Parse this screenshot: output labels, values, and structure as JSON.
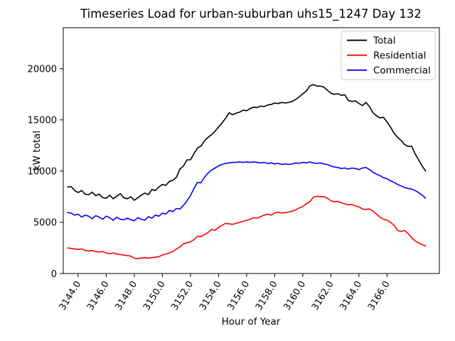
{
  "chart_data": {
    "type": "line",
    "title": "Timeseries Load for urban-suburban uhs15_1247  Day 132",
    "xlabel": "Hour of Year",
    "ylabel": "kW total",
    "xlim": [
      3142.94,
      3169.73
    ],
    "ylim": [
      0,
      24000
    ],
    "xticks": [
      3144,
      3146,
      3148,
      3150,
      3152,
      3154,
      3156,
      3158,
      3160,
      3162,
      3164,
      3166
    ],
    "xtick_labels": [
      "3144.0",
      "3146.0",
      "3148.0",
      "3150.0",
      "3152.0",
      "3154.0",
      "3156.0",
      "3158.0",
      "3160.0",
      "3162.0",
      "3164.0",
      "3166.0"
    ],
    "yticks": [
      0,
      5000,
      10000,
      15000,
      20000
    ],
    "ytick_labels": [
      "0",
      "5000",
      "10000",
      "15000",
      "20000"
    ],
    "grid": false,
    "legend_position": "upper right",
    "x": [
      3143.25,
      3143.5,
      3143.75,
      3144.0,
      3144.25,
      3144.5,
      3144.75,
      3145.0,
      3145.25,
      3145.5,
      3145.75,
      3146.0,
      3146.25,
      3146.5,
      3146.75,
      3147.0,
      3147.25,
      3147.5,
      3147.75,
      3148.0,
      3148.25,
      3148.5,
      3148.75,
      3149.0,
      3149.25,
      3149.5,
      3149.75,
      3150.0,
      3150.25,
      3150.5,
      3150.75,
      3151.0,
      3151.25,
      3151.5,
      3151.75,
      3152.0,
      3152.25,
      3152.5,
      3152.75,
      3153.0,
      3153.25,
      3153.5,
      3153.75,
      3154.0,
      3154.25,
      3154.5,
      3154.75,
      3155.0,
      3155.25,
      3155.5,
      3155.75,
      3156.0,
      3156.25,
      3156.5,
      3156.75,
      3157.0,
      3157.25,
      3157.5,
      3157.75,
      3158.0,
      3158.25,
      3158.5,
      3158.75,
      3159.0,
      3159.25,
      3159.5,
      3159.75,
      3160.0,
      3160.25,
      3160.5,
      3160.75,
      3161.0,
      3161.25,
      3161.5,
      3161.75,
      3162.0,
      3162.25,
      3162.5,
      3162.75,
      3163.0,
      3163.25,
      3163.5,
      3163.75,
      3164.0,
      3164.25,
      3164.5,
      3164.75,
      3165.0,
      3165.25,
      3165.5,
      3165.75,
      3166.0,
      3166.25,
      3166.5,
      3166.75,
      3167.0,
      3167.25,
      3167.5,
      3167.75,
      3168.0,
      3168.25,
      3168.5,
      3168.75
    ],
    "series": [
      {
        "name": "Total",
        "color": "#000000",
        "values": [
          8450,
          8500,
          8100,
          7900,
          8100,
          7750,
          7700,
          7950,
          7600,
          7750,
          7400,
          7350,
          7650,
          7300,
          7550,
          7800,
          7400,
          7300,
          7500,
          7150,
          7400,
          7650,
          7850,
          7700,
          8200,
          8100,
          8450,
          8700,
          8600,
          9000,
          9100,
          9400,
          10200,
          10500,
          11100,
          11100,
          11700,
          12250,
          12450,
          12950,
          13300,
          13550,
          13900,
          14300,
          14700,
          15150,
          15700,
          15500,
          15650,
          15750,
          15950,
          15900,
          16100,
          16250,
          16200,
          16350,
          16300,
          16450,
          16500,
          16650,
          16600,
          16700,
          16650,
          16700,
          16800,
          17000,
          17250,
          17550,
          17800,
          18300,
          18450,
          18300,
          18300,
          18200,
          17900,
          17600,
          17500,
          17550,
          17400,
          17450,
          16900,
          16800,
          16850,
          16600,
          16400,
          16700,
          16300,
          15700,
          15400,
          15200,
          15250,
          14800,
          14300,
          13700,
          13300,
          13000,
          12600,
          12400,
          12450,
          11700,
          11100,
          10500,
          10000
        ]
      },
      {
        "name": "Residential",
        "color": "#ff0000",
        "values": [
          2500,
          2450,
          2400,
          2350,
          2400,
          2250,
          2200,
          2250,
          2150,
          2100,
          2150,
          2000,
          1950,
          2000,
          1900,
          1850,
          1800,
          1750,
          1700,
          1500,
          1450,
          1500,
          1550,
          1500,
          1550,
          1600,
          1650,
          1800,
          1900,
          2000,
          2150,
          2400,
          2600,
          2900,
          3000,
          3100,
          3300,
          3650,
          3600,
          3800,
          4000,
          4300,
          4200,
          4500,
          4700,
          4900,
          4850,
          4800,
          4900,
          5000,
          5100,
          5200,
          5300,
          5450,
          5400,
          5550,
          5700,
          5800,
          5700,
          5900,
          6000,
          5900,
          5950,
          6000,
          6100,
          6200,
          6400,
          6550,
          6800,
          7000,
          7450,
          7550,
          7500,
          7500,
          7350,
          7100,
          7000,
          7050,
          6900,
          6800,
          6700,
          6750,
          6600,
          6500,
          6300,
          6250,
          6300,
          6100,
          5800,
          5500,
          5300,
          5200,
          5000,
          4700,
          4200,
          4100,
          4200,
          3900,
          3500,
          3200,
          3000,
          2800,
          2700
        ]
      },
      {
        "name": "Commercial",
        "color": "#0000ff",
        "values": [
          5950,
          5900,
          5700,
          5800,
          5500,
          5700,
          5600,
          5350,
          5650,
          5500,
          5300,
          5600,
          5450,
          5200,
          5500,
          5300,
          5250,
          5400,
          5250,
          5150,
          5450,
          5300,
          5200,
          5550,
          5400,
          5700,
          5600,
          5900,
          5800,
          6150,
          6050,
          6350,
          6300,
          6650,
          7100,
          7600,
          8300,
          8900,
          8850,
          9400,
          9800,
          10100,
          10300,
          10500,
          10650,
          10750,
          10800,
          10850,
          10850,
          10900,
          10850,
          10900,
          10850,
          10900,
          10850,
          10800,
          10850,
          10750,
          10800,
          10700,
          10750,
          10650,
          10700,
          10650,
          10700,
          10800,
          10750,
          10850,
          10800,
          10900,
          10800,
          10750,
          10800,
          10700,
          10650,
          10500,
          10400,
          10350,
          10250,
          10300,
          10200,
          10300,
          10250,
          10150,
          10300,
          10350,
          10150,
          9900,
          9700,
          9550,
          9350,
          9250,
          9050,
          8900,
          8700,
          8550,
          8400,
          8300,
          8250,
          8100,
          7900,
          7650,
          7350
        ]
      }
    ]
  }
}
